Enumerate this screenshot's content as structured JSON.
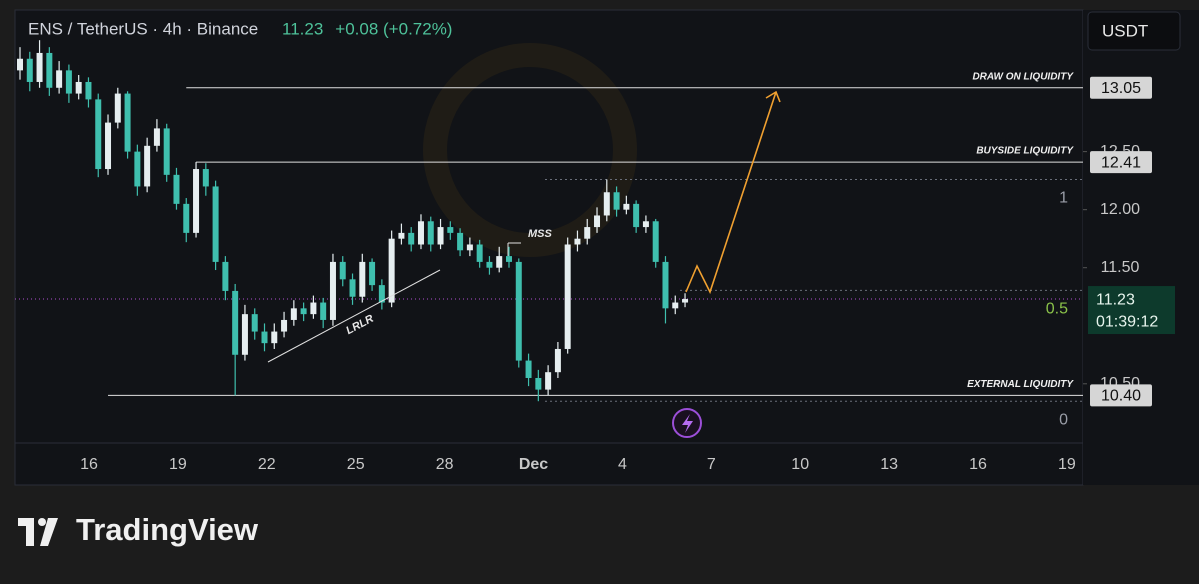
{
  "chart_data": {
    "type": "candlestick",
    "title": "ENS / TetherUS · 4h · Binance",
    "last_price": 11.23,
    "change": "+0.08 (+0.72%)",
    "quote_currency": "USDT",
    "countdown": "01:39:12",
    "up_color": "#e6eef0",
    "down_color": "#3fbfae",
    "ylim": [
      9.99,
      13.72
    ],
    "yticks": [
      {
        "value": 10.5,
        "label": "10.50"
      },
      {
        "value": 11.5,
        "label": "11.50"
      },
      {
        "value": 12,
        "label": "12.00"
      },
      {
        "value": 12.5,
        "label": "12.50"
      }
    ],
    "xtick_labels": [
      "16",
      "19",
      "22",
      "25",
      "28",
      "Dec",
      "4",
      "7",
      "10",
      "13",
      "16",
      "19"
    ],
    "candles": [
      [
        13.2,
        13.4,
        13.12,
        13.3
      ],
      [
        13.3,
        13.36,
        13.02,
        13.1
      ],
      [
        13.1,
        13.46,
        13.05,
        13.35
      ],
      [
        13.35,
        13.4,
        12.98,
        13.05
      ],
      [
        13.05,
        13.28,
        13.0,
        13.2
      ],
      [
        13.2,
        13.25,
        12.92,
        13.0
      ],
      [
        13.0,
        13.16,
        12.95,
        13.1
      ],
      [
        13.1,
        13.14,
        12.88,
        12.95
      ],
      [
        12.95,
        13.0,
        12.28,
        12.35
      ],
      [
        12.35,
        12.82,
        12.3,
        12.75
      ],
      [
        12.75,
        13.05,
        12.7,
        13.0
      ],
      [
        13.0,
        13.02,
        12.44,
        12.5
      ],
      [
        12.5,
        12.56,
        12.12,
        12.2
      ],
      [
        12.2,
        12.62,
        12.15,
        12.55
      ],
      [
        12.55,
        12.78,
        12.5,
        12.7
      ],
      [
        12.7,
        12.74,
        12.24,
        12.3
      ],
      [
        12.3,
        12.36,
        12.0,
        12.05
      ],
      [
        12.05,
        12.1,
        11.72,
        11.8
      ],
      [
        11.8,
        12.41,
        11.76,
        12.35
      ],
      [
        12.35,
        12.4,
        12.12,
        12.2
      ],
      [
        12.2,
        12.25,
        11.48,
        11.55
      ],
      [
        11.55,
        11.6,
        11.22,
        11.3
      ],
      [
        11.3,
        11.36,
        10.4,
        10.75
      ],
      [
        10.75,
        11.18,
        10.7,
        11.1
      ],
      [
        11.1,
        11.15,
        10.88,
        10.95
      ],
      [
        10.95,
        11.02,
        10.78,
        10.85
      ],
      [
        10.85,
        11.02,
        10.8,
        10.95
      ],
      [
        10.95,
        11.12,
        10.9,
        11.05
      ],
      [
        11.05,
        11.22,
        11.0,
        11.15
      ],
      [
        11.15,
        11.2,
        11.04,
        11.1
      ],
      [
        11.1,
        11.26,
        11.06,
        11.2
      ],
      [
        11.2,
        11.24,
        10.98,
        11.05
      ],
      [
        11.05,
        11.62,
        11.0,
        11.55
      ],
      [
        11.55,
        11.6,
        11.34,
        11.4
      ],
      [
        11.4,
        11.45,
        11.18,
        11.25
      ],
      [
        11.25,
        11.62,
        11.2,
        11.55
      ],
      [
        11.55,
        11.58,
        11.3,
        11.35
      ],
      [
        11.35,
        11.4,
        11.14,
        11.2
      ],
      [
        11.2,
        11.82,
        11.16,
        11.75
      ],
      [
        11.75,
        11.88,
        11.7,
        11.8
      ],
      [
        11.8,
        11.85,
        11.64,
        11.7
      ],
      [
        11.7,
        11.96,
        11.66,
        11.9
      ],
      [
        11.9,
        11.94,
        11.64,
        11.7
      ],
      [
        11.7,
        11.92,
        11.66,
        11.85
      ],
      [
        11.85,
        11.9,
        11.74,
        11.8
      ],
      [
        11.8,
        11.84,
        11.6,
        11.65
      ],
      [
        11.65,
        11.76,
        11.6,
        11.7
      ],
      [
        11.7,
        11.74,
        11.5,
        11.55
      ],
      [
        11.55,
        11.6,
        11.44,
        11.5
      ],
      [
        11.5,
        11.68,
        11.46,
        11.6
      ],
      [
        11.6,
        11.68,
        11.5,
        11.55
      ],
      [
        11.55,
        11.58,
        10.64,
        10.7
      ],
      [
        10.7,
        10.76,
        10.48,
        10.55
      ],
      [
        10.55,
        10.62,
        10.35,
        10.45
      ],
      [
        10.45,
        10.66,
        10.4,
        10.6
      ],
      [
        10.6,
        10.86,
        10.55,
        10.8
      ],
      [
        10.8,
        11.76,
        10.76,
        11.7
      ],
      [
        11.7,
        11.82,
        11.64,
        11.75
      ],
      [
        11.75,
        11.92,
        11.7,
        11.85
      ],
      [
        11.85,
        12.02,
        11.8,
        11.95
      ],
      [
        11.95,
        12.26,
        11.9,
        12.15
      ],
      [
        12.15,
        12.2,
        11.94,
        12.0
      ],
      [
        12.0,
        12.12,
        11.96,
        12.05
      ],
      [
        12.05,
        12.08,
        11.8,
        11.85
      ],
      [
        11.85,
        11.95,
        11.8,
        11.9
      ],
      [
        11.9,
        11.92,
        11.5,
        11.55
      ],
      [
        11.55,
        11.6,
        11.02,
        11.15
      ],
      [
        11.15,
        11.26,
        11.1,
        11.2
      ],
      [
        11.2,
        11.28,
        11.16,
        11.23
      ]
    ],
    "levels": [
      {
        "text": "DRAW ON LIQUIDITY",
        "price": 13.05,
        "price_label": "13.05",
        "from": 17
      },
      {
        "text": "BUYSIDE LIQUIDITY",
        "price": 12.41,
        "price_label": "12.41",
        "from": 18
      },
      {
        "text": "EXTERNAL LIQUIDITY",
        "price": 10.4,
        "price_label": "10.40",
        "from": 9
      }
    ],
    "fib": [
      {
        "label": 1,
        "price": 12.26
      },
      {
        "label": 0.5,
        "price": 11.305
      },
      {
        "label": 0,
        "price": 10.35
      }
    ],
    "annotations": [
      "MSS",
      "LRLR"
    ],
    "logo": "TradingView"
  }
}
